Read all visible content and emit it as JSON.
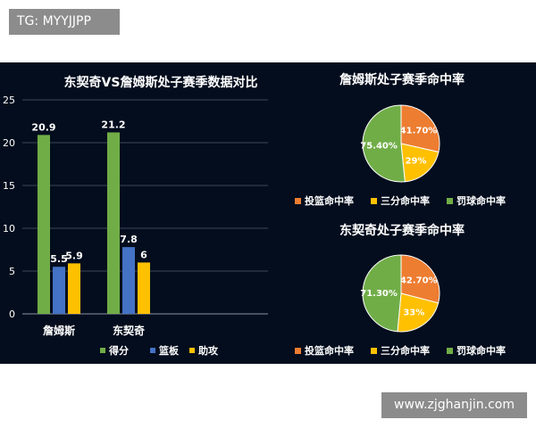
{
  "watermarks": {
    "top": "TG: MYYJJPP",
    "bottom": "www.zjghanjin.com"
  },
  "colors": {
    "points": "#70ad47",
    "rebounds": "#4472c4",
    "assists": "#ffc000",
    "fg": "#ed7d31",
    "three": "#ffc000",
    "ft": "#70ad47"
  },
  "chart_data": [
    {
      "type": "bar",
      "title": "东契奇VS詹姆斯处子赛季数据对比",
      "categories": [
        "詹姆斯",
        "东契奇"
      ],
      "series": [
        {
          "name": "得分",
          "values": [
            20.9,
            21.2
          ]
        },
        {
          "name": "篮板",
          "values": [
            5.5,
            7.8
          ]
        },
        {
          "name": "助攻",
          "values": [
            5.9,
            6
          ]
        }
      ],
      "ylim": [
        0,
        25
      ],
      "yticks": [
        "0",
        "5",
        "10",
        "15",
        "20",
        "25"
      ],
      "grid": true,
      "legend": "bottom"
    },
    {
      "type": "pie",
      "title": "詹姆斯处子赛季命中率",
      "labels": [
        "投篮命中率",
        "三分命中率",
        "罚球命中率"
      ],
      "values": [
        41.7,
        29,
        75.4
      ],
      "value_labels": [
        "41.70%",
        "29%",
        "75.40%"
      ],
      "legend": "bottom"
    },
    {
      "type": "pie",
      "title": "东契奇处子赛季命中率",
      "labels": [
        "投篮命中率",
        "三分命中率",
        "罚球命中率"
      ],
      "values": [
        42.7,
        33,
        71.3
      ],
      "value_labels": [
        "42.70%",
        "33%",
        "71.30%"
      ],
      "legend": "bottom"
    }
  ]
}
